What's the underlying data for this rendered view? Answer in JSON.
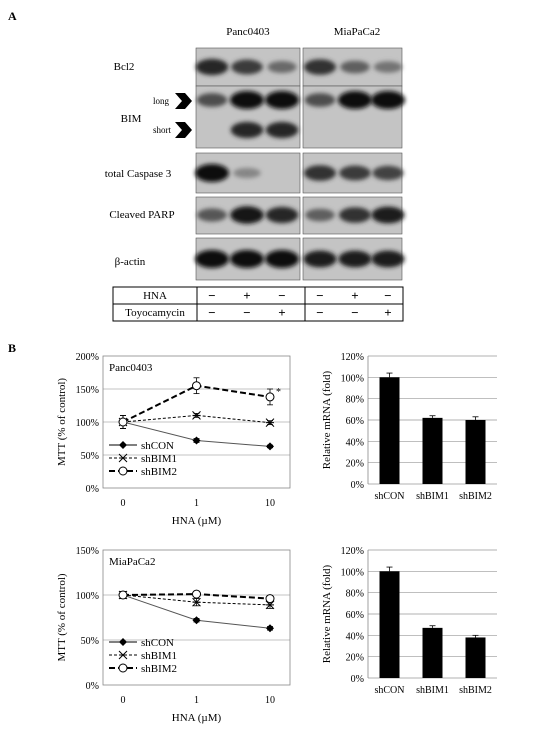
{
  "panel_a": {
    "letter": "A",
    "cell_lines": [
      "Panc0403",
      "MiaPaCa2"
    ],
    "proteins": [
      "Bcl2",
      "BIM",
      "total Caspase 3",
      "Cleaved PARP",
      "β-actin"
    ],
    "bim_forms": [
      "long",
      "short"
    ],
    "treatments": [
      {
        "name": "HNA",
        "signs": [
          "−",
          "+",
          "−",
          "−",
          "+",
          "−"
        ]
      },
      {
        "name": "Toyocamycin",
        "signs": [
          "−",
          "−",
          "+",
          "−",
          "−",
          "+"
        ]
      }
    ],
    "band_intensity": {
      "Bcl2": [
        [
          0.85,
          0.75,
          0.5
        ],
        [
          0.8,
          0.55,
          0.45
        ]
      ],
      "BIM long": [
        [
          0.65,
          1.0,
          1.0
        ],
        [
          0.65,
          1.0,
          1.0
        ]
      ],
      "BIM short": [
        [
          0.0,
          0.85,
          0.85
        ],
        [
          0.0,
          0.0,
          0.0
        ]
      ],
      "total Caspase 3": [
        [
          1.0,
          0.35,
          0.0
        ],
        [
          0.8,
          0.75,
          0.7
        ]
      ],
      "Cleaved PARP": [
        [
          0.6,
          0.95,
          0.85
        ],
        [
          0.55,
          0.8,
          0.9
        ]
      ],
      "β-actin": [
        [
          1.0,
          1.0,
          1.0
        ],
        [
          0.9,
          0.9,
          0.9
        ]
      ]
    }
  },
  "panel_b": {
    "letter": "B"
  },
  "chart_data": [
    {
      "type": "line",
      "panel": "Panc0403",
      "xlabel": "HNA (µM)",
      "ylabel": "MTT (% of control)",
      "x": [
        "0",
        "1",
        "10"
      ],
      "ylim": [
        0,
        200
      ],
      "ytick_labels": [
        "0%",
        "50%",
        "100%",
        "150%",
        "200%"
      ],
      "series": [
        {
          "name": "shCON",
          "values": [
            100,
            72,
            63
          ],
          "errors": [
            10,
            3,
            2
          ]
        },
        {
          "name": "shBIM1",
          "values": [
            100,
            110,
            99
          ],
          "errors": [
            10,
            3,
            3
          ]
        },
        {
          "name": "shBIM2",
          "values": [
            100,
            155,
            138
          ],
          "errors": [
            10,
            12,
            12
          ]
        }
      ],
      "annotations": [
        "*"
      ],
      "legend": "bottom-left"
    },
    {
      "type": "bar",
      "ylabel": "Relative mRNA (fold)",
      "categories": [
        "shCON",
        "shBIM1",
        "shBIM2"
      ],
      "values": [
        100,
        62,
        60
      ],
      "errors": [
        4,
        2,
        3
      ],
      "ylim": [
        0,
        120
      ],
      "ytick_labels": [
        "0%",
        "20%",
        "40%",
        "60%",
        "80%",
        "100%",
        "120%"
      ],
      "grid": true
    },
    {
      "type": "line",
      "panel": "MiaPaCa2",
      "xlabel": "HNA (µM)",
      "ylabel": "MTT (% of control)",
      "x": [
        "0",
        "1",
        "10"
      ],
      "ylim": [
        0,
        150
      ],
      "ytick_labels": [
        "0%",
        "50%",
        "100%",
        "150%"
      ],
      "series": [
        {
          "name": "shCON",
          "values": [
            100,
            72,
            63
          ],
          "errors": [
            4,
            2,
            2
          ]
        },
        {
          "name": "shBIM1",
          "values": [
            100,
            92,
            89
          ],
          "errors": [
            4,
            4,
            4
          ]
        },
        {
          "name": "shBIM2",
          "values": [
            100,
            101,
            96
          ],
          "errors": [
            4,
            3,
            3
          ]
        }
      ],
      "legend": "bottom-left"
    },
    {
      "type": "bar",
      "ylabel": "Relative mRNA (fold)",
      "categories": [
        "shCON",
        "shBIM1",
        "shBIM2"
      ],
      "values": [
        100,
        47,
        38
      ],
      "errors": [
        4,
        2,
        2
      ],
      "ylim": [
        0,
        120
      ],
      "ytick_labels": [
        "0%",
        "20%",
        "40%",
        "60%",
        "80%",
        "100%",
        "120%"
      ],
      "grid": true
    }
  ]
}
